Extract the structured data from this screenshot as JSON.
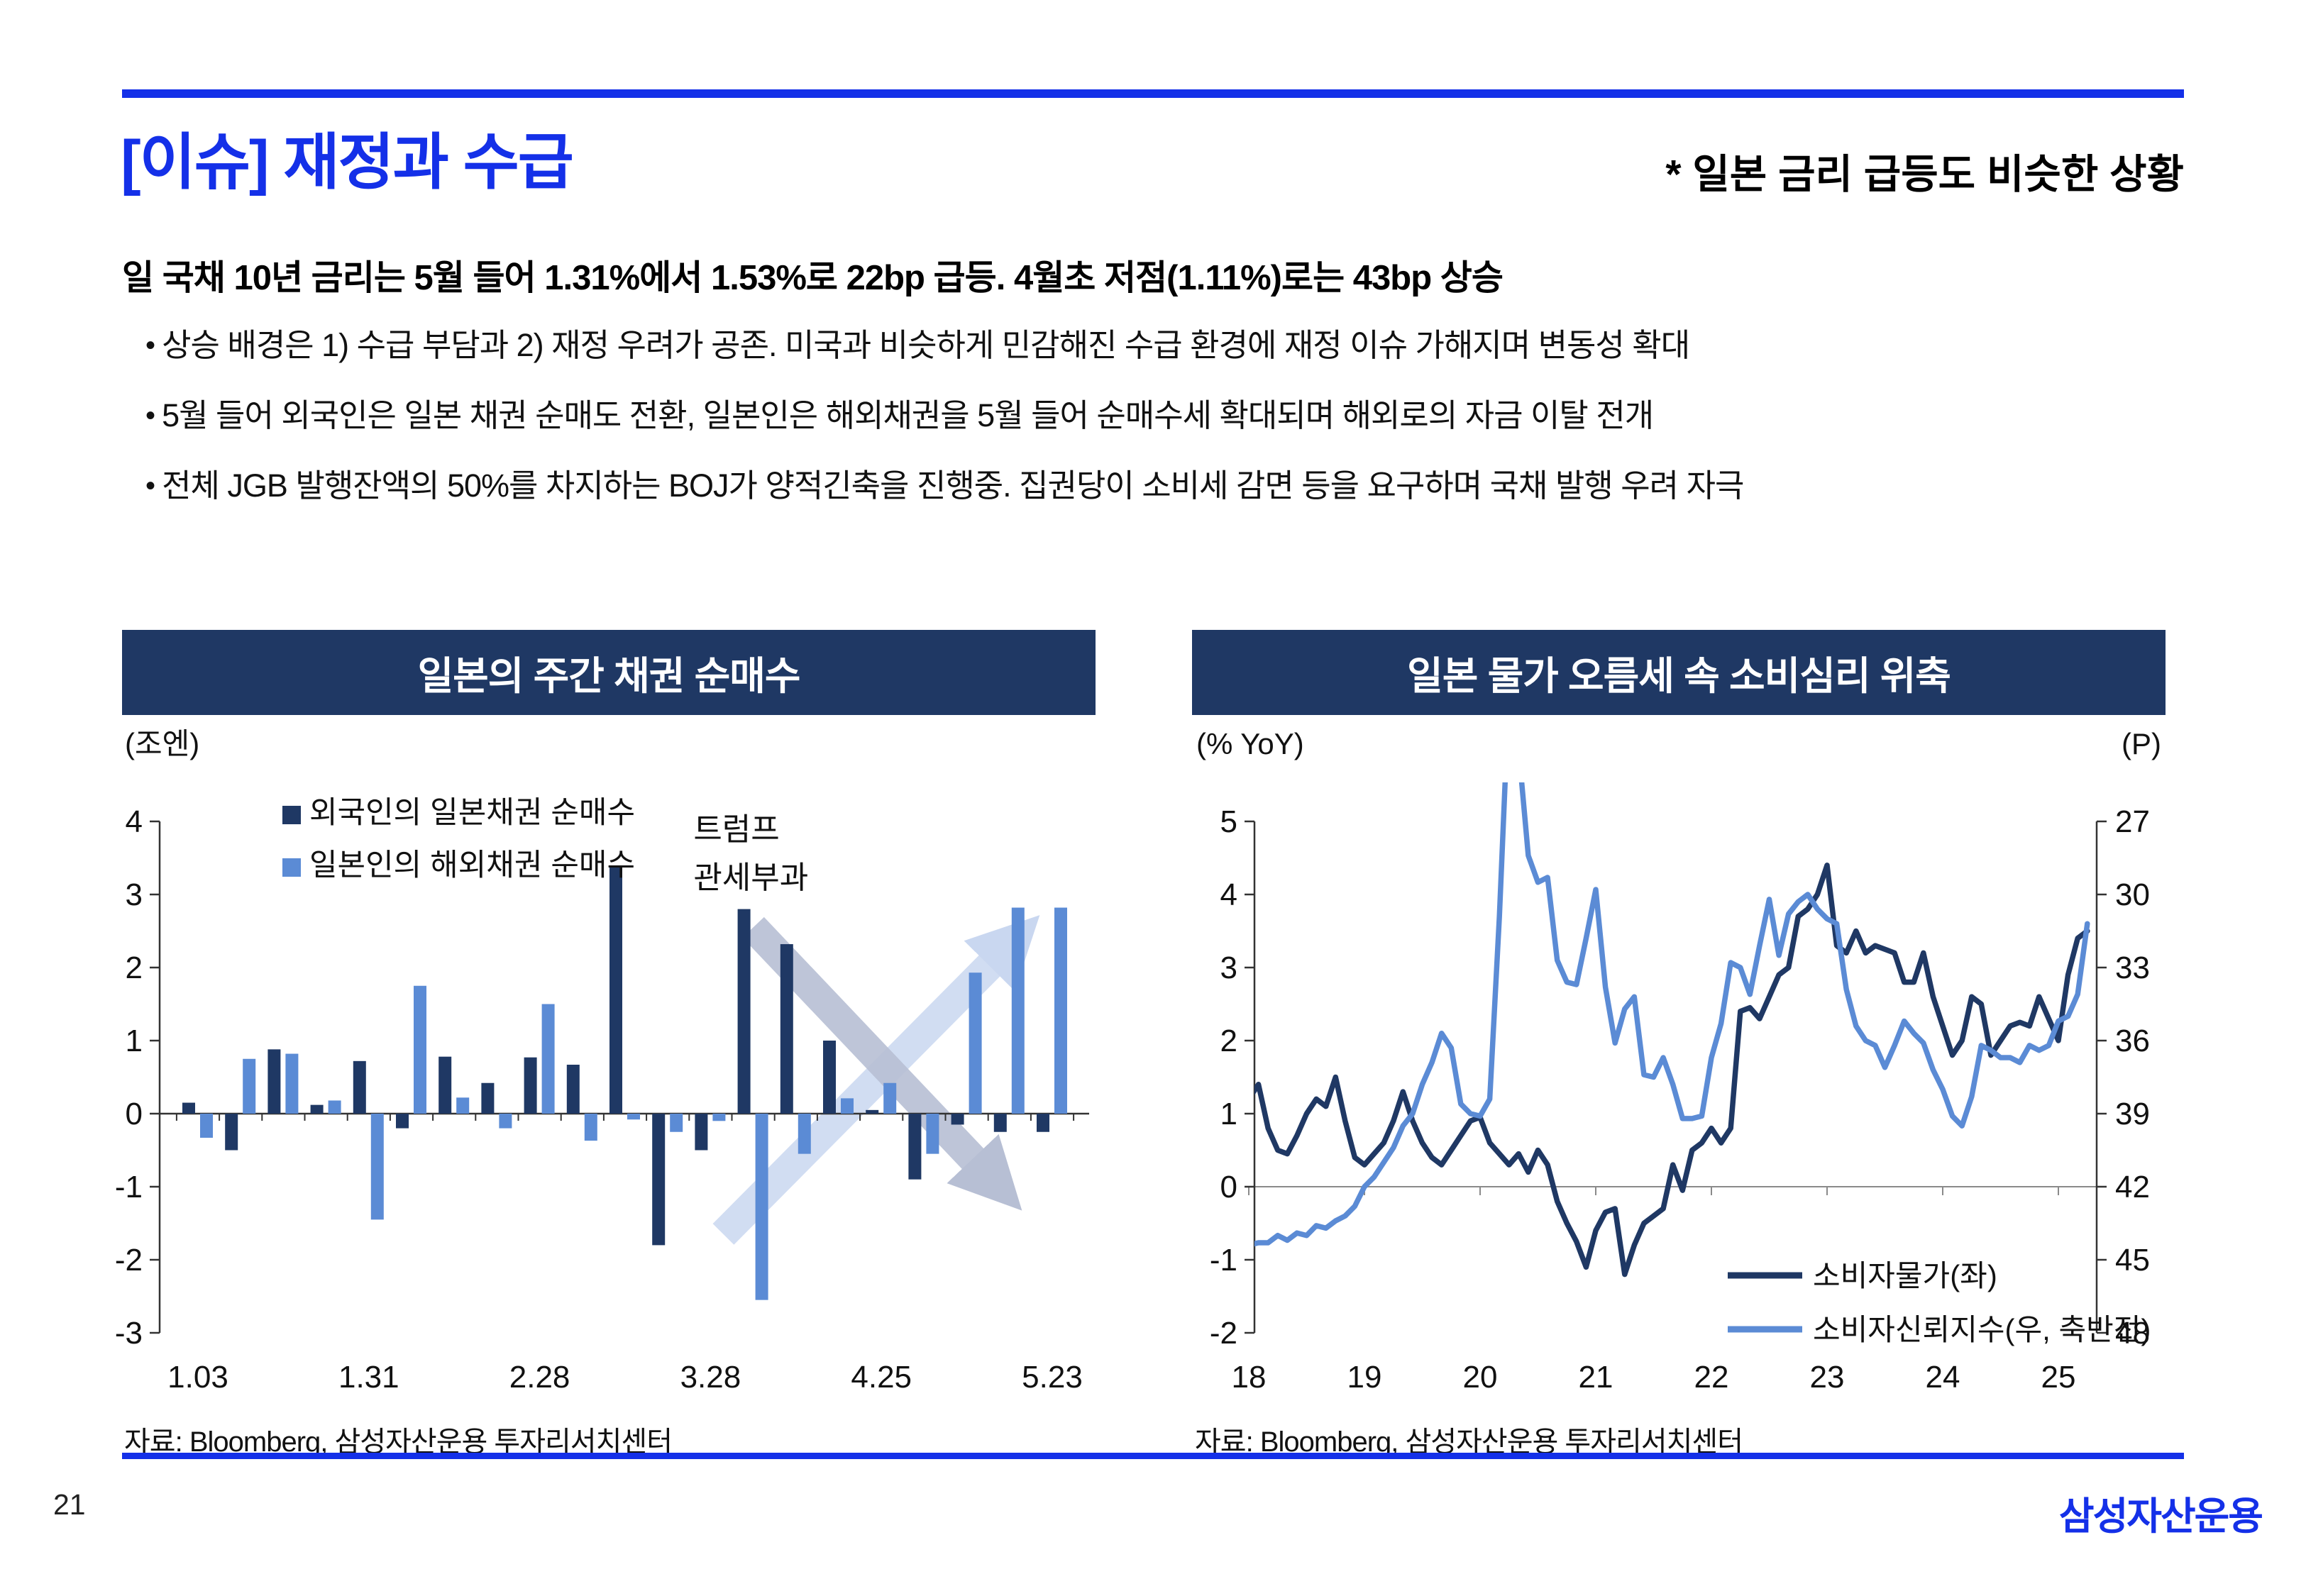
{
  "page": {
    "title": "[이슈] 재정과 수급",
    "title_note": "* 일본 금리 급등도 비슷한 상황",
    "lead": "일 국채 10년 금리는 5월 들어 1.31%에서 1.53%로 22bp 급등. 4월초 저점(1.11%)로는 43bp 상승",
    "bullets": [
      "상승 배경은 1) 수급 부담과 2) 재정 우려가 공존. 미국과 비슷하게 민감해진 수급 환경에 재정 이슈 가해지며 변동성 확대",
      "5월 들어 외국인은 일본 채권 순매도 전환, 일본인은 해외채권을 5월 들어 순매수세 확대되며 해외로의 자금 이탈 전개",
      "전체 JGB 발행잔액의 50%를 차지하는 BOJ가 양적긴축을 진행중. 집권당이 소비세 감면 등을 요구하며 국채 발행 우려 자극"
    ],
    "page_number": "21",
    "logo": "삼성자산운용"
  },
  "colors": {
    "accent_blue": "#1430E8",
    "navy": "#1F3864",
    "light_blue": "#5B8BD5",
    "gray_arrow": "#B7BFD4",
    "blue_arrow": "#C9D7F0"
  },
  "chart_data": [
    {
      "type": "bar",
      "title": "일본의 주간 채권 순매수",
      "unit_label": "(조엔)",
      "ylim": [
        -3,
        4
      ],
      "yticks": [
        4,
        3,
        2,
        1,
        0,
        -1,
        -2,
        -3
      ],
      "categories": [
        "1.03",
        "1.10",
        "1.17",
        "1.24",
        "1.31",
        "2.07",
        "2.14",
        "2.21",
        "2.28",
        "3.07",
        "3.14",
        "3.21",
        "3.28",
        "4.04",
        "4.11",
        "4.18",
        "4.25",
        "5.02",
        "5.09",
        "5.16",
        "5.23"
      ],
      "x_tick_labels": [
        "1.03",
        "1.31",
        "2.28",
        "3.28",
        "4.25",
        "5.23"
      ],
      "x_tick_positions": [
        0,
        4,
        8,
        12,
        16,
        20
      ],
      "series": [
        {
          "name": "외국인의 일본채권 순매수",
          "color": "#1F3864",
          "values": [
            0.15,
            -0.5,
            0.88,
            0.12,
            0.72,
            -0.2,
            0.78,
            0.42,
            0.77,
            0.67,
            3.38,
            -1.8,
            -0.5,
            2.8,
            2.32,
            1.0,
            0.05,
            -0.9,
            -0.15,
            -0.25,
            -0.25
          ]
        },
        {
          "name": "일본인의 해외채권 순매수",
          "color": "#5B8BD5",
          "values": [
            -0.33,
            0.75,
            0.82,
            0.18,
            -1.45,
            1.75,
            0.22,
            -0.2,
            1.5,
            -0.37,
            -0.08,
            -0.25,
            -0.1,
            -2.55,
            -0.55,
            0.21,
            0.42,
            -0.55,
            1.93,
            2.82,
            2.82
          ]
        }
      ],
      "annotation": {
        "lines": [
          "트럼프",
          "관세부과"
        ],
        "week_index": 11.6,
        "value": 3.75
      },
      "arrows": [
        {
          "color": "#C9D7F0",
          "opacity": 0.85,
          "from_week": 12.3,
          "from_value": -1.65,
          "to_week": 19.0,
          "to_value": 2.3
        },
        {
          "color": "#B7BFD4",
          "opacity": 0.9,
          "from_week": 13.0,
          "from_value": 2.55,
          "to_week": 18.6,
          "to_value": -0.9
        }
      ],
      "source": "자료: Bloomberg, 삼성자산운용 투자리서치센터"
    },
    {
      "type": "line",
      "title": "일본 물가 오름세 속 소비심리 위축",
      "left_axis_label": "(% YoY)",
      "right_axis_label": "(P)",
      "left_ylim": [
        -2,
        5
      ],
      "left_yticks": [
        5,
        4,
        3,
        2,
        1,
        0,
        -1,
        -2
      ],
      "right_yticks": [
        27,
        30,
        33,
        36,
        39,
        42,
        45,
        48
      ],
      "right_axis_inverted": true,
      "x_ticks": [
        18,
        19,
        20,
        21,
        22,
        23,
        24,
        25
      ],
      "series": [
        {
          "name": "소비자물가(좌)",
          "axis": "left",
          "color": "#1F3864",
          "start_year": 2018,
          "monthly_values": [
            1.2,
            1.4,
            0.8,
            0.5,
            0.45,
            0.7,
            1.0,
            1.2,
            1.1,
            1.5,
            0.9,
            0.4,
            0.3,
            0.45,
            0.6,
            0.9,
            1.3,
            0.9,
            0.6,
            0.4,
            0.3,
            0.5,
            0.7,
            0.9,
            0.95,
            0.6,
            0.45,
            0.3,
            0.45,
            0.2,
            0.5,
            0.3,
            -0.2,
            -0.5,
            -0.75,
            -1.1,
            -0.6,
            -0.35,
            -0.3,
            -1.2,
            -0.8,
            -0.5,
            -0.4,
            -0.3,
            0.3,
            -0.05,
            0.5,
            0.6,
            0.8,
            0.6,
            0.8,
            2.4,
            2.45,
            2.3,
            2.6,
            2.9,
            3.0,
            3.7,
            3.8,
            4.0,
            4.4,
            3.3,
            3.2,
            3.5,
            3.2,
            3.3,
            3.25,
            3.2,
            2.8,
            2.8,
            3.2,
            2.6,
            2.2,
            1.8,
            2.0,
            2.6,
            2.5,
            1.8,
            2.0,
            2.2,
            2.25,
            2.2,
            2.6,
            2.3,
            2.0,
            2.9,
            3.4,
            3.5
          ]
        },
        {
          "name": "소비자신뢰지수(우, 축반전)",
          "axis": "right",
          "color": "#5B8BD5",
          "start_year": 2018,
          "monthly_values": [
            44.4,
            44.3,
            44.3,
            44.0,
            44.2,
            43.9,
            44.0,
            43.6,
            43.7,
            43.4,
            43.2,
            42.8,
            42.0,
            41.6,
            41.0,
            40.4,
            39.5,
            39.0,
            37.8,
            36.9,
            35.7,
            36.3,
            38.6,
            39.0,
            39.1,
            38.4,
            30.9,
            21.6,
            24.0,
            28.4,
            29.5,
            29.3,
            32.7,
            33.6,
            33.7,
            31.8,
            29.8,
            33.8,
            36.1,
            34.7,
            34.2,
            37.4,
            37.5,
            36.7,
            37.8,
            39.2,
            39.2,
            39.1,
            36.7,
            35.3,
            32.8,
            33.0,
            34.1,
            32.1,
            30.2,
            32.5,
            30.8,
            30.3,
            30.0,
            30.6,
            31.0,
            31.2,
            33.9,
            35.4,
            36.0,
            36.2,
            37.1,
            36.2,
            35.2,
            35.7,
            36.1,
            37.2,
            38.0,
            39.1,
            39.5,
            38.3,
            36.2,
            36.4,
            36.7,
            36.7,
            36.9,
            36.2,
            36.4,
            36.2,
            35.2,
            35.0,
            34.1,
            31.2
          ]
        }
      ],
      "source": "자료: Bloomberg, 삼성자산운용 투자리서치센터"
    }
  ]
}
